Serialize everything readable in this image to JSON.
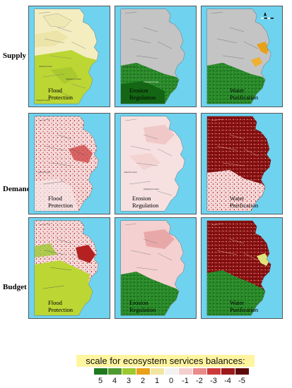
{
  "rows": [
    {
      "label": "Supply"
    },
    {
      "label": "Demand"
    },
    {
      "label": "Budget"
    }
  ],
  "columns": [
    {
      "label": "Flood Protection"
    },
    {
      "label": "Erosion Regulation"
    },
    {
      "label": "Water Purification"
    }
  ],
  "panel_labels": {
    "flood": [
      "Flood",
      "Protection"
    ],
    "erosion": [
      "Erosion",
      "Regulation"
    ],
    "water": [
      "Water",
      "Purification"
    ]
  },
  "legend": {
    "title": "scale for ecosystem services balances:",
    "values": [
      "5",
      "4",
      "3",
      "2",
      "1",
      "0",
      "-1",
      "-2",
      "-3",
      "-4",
      "-5"
    ],
    "colors": [
      "#1f7a1f",
      "#4f9a2f",
      "#9dc82f",
      "#e8a11a",
      "#f1e6a0",
      "#f2f2f2",
      "#f4cfcf",
      "#e98b8b",
      "#cc3a3a",
      "#9c1a1a",
      "#5e0a0a"
    ]
  },
  "map": {
    "sea_color": "#6fd3f0",
    "land_outline": "#555555"
  }
}
